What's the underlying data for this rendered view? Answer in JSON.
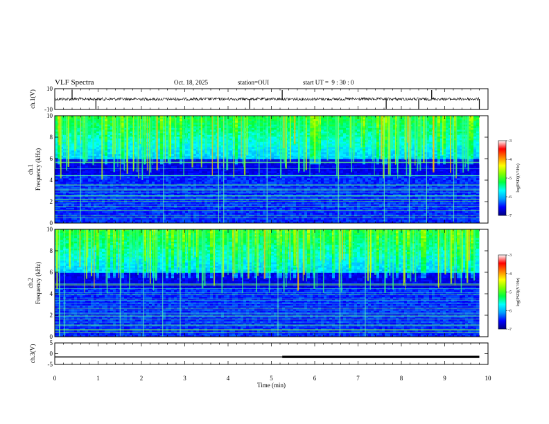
{
  "header": {
    "title": "VLF Spectra",
    "date": "Oct. 18, 2025",
    "station": "station=OUI",
    "start": "start UT =  9 : 30 : 0"
  },
  "colors": {
    "stops": [
      "#00007f",
      "#0000ff",
      "#00a0ff",
      "#00ffff",
      "#00ff40",
      "#80ff00",
      "#ffff00",
      "#ff8000",
      "#ff0000",
      "#ffffff"
    ]
  },
  "chart_data": [
    {
      "id": "ch1-waveform",
      "type": "line",
      "ylabel": "ch.1(V)",
      "ylim": [
        -10,
        10
      ],
      "yticks": [
        -10,
        10
      ],
      "ytick_labels": [
        "-10",
        "10"
      ],
      "baseline": 0,
      "spike_times": [
        0.4,
        0.95,
        4.5,
        5.25,
        7.65,
        8.4,
        8.7,
        9.8
      ]
    },
    {
      "id": "ch1-spectrogram",
      "type": "heatmap",
      "ylabel": "ch.1 Frequency (kHz)",
      "ylim": [
        0,
        10
      ],
      "yticks": [
        0,
        2,
        4,
        6,
        8,
        10
      ],
      "ytick_labels": [
        "0",
        "2",
        "4",
        "6",
        "8",
        "10"
      ],
      "colorbar": {
        "label": "log(PSD)(V²/Hz)",
        "range": [
          -7,
          -3
        ],
        "ticks": [
          -7,
          -6,
          -5,
          -4,
          -3
        ],
        "tick_labels": [
          "-7",
          "-6",
          "-5",
          "-4",
          "-3"
        ]
      }
    },
    {
      "id": "ch2-spectrogram",
      "type": "heatmap",
      "ylabel": "ch.2 Frequency (kHz)",
      "ylim": [
        0,
        10
      ],
      "yticks": [
        0,
        2,
        4,
        6,
        8,
        10
      ],
      "ytick_labels": [
        "0",
        "2",
        "4",
        "6",
        "8",
        "10"
      ],
      "colorbar": {
        "label": "log(PSD)(V²/Hz)",
        "range": [
          -7,
          -3
        ],
        "ticks": [
          -7,
          -6,
          -5,
          -4,
          -3
        ],
        "tick_labels": [
          "-7",
          "-6",
          "-5",
          "-4",
          "-3"
        ]
      }
    },
    {
      "id": "ch3-signal",
      "type": "line",
      "ylabel": "ch.3(V)",
      "ylim": [
        -5,
        5
      ],
      "yticks": [
        -5,
        0,
        5
      ],
      "ytick_labels": [
        "-5",
        "0",
        "5"
      ],
      "x": [
        0,
        5.25,
        5.25,
        9.8
      ],
      "y": [
        -1.5,
        -1.5,
        -1.5,
        -1.5
      ],
      "thick_from": 5.25
    }
  ],
  "xaxis": {
    "label": "Time (min)",
    "range": [
      0,
      10
    ],
    "ticks": [
      0,
      1,
      2,
      3,
      4,
      5,
      6,
      7,
      8,
      9,
      10
    ],
    "tick_labels": [
      "0",
      "1",
      "2",
      "3",
      "4",
      "5",
      "6",
      "7",
      "8",
      "9",
      "10"
    ],
    "data_end": 9.8
  }
}
